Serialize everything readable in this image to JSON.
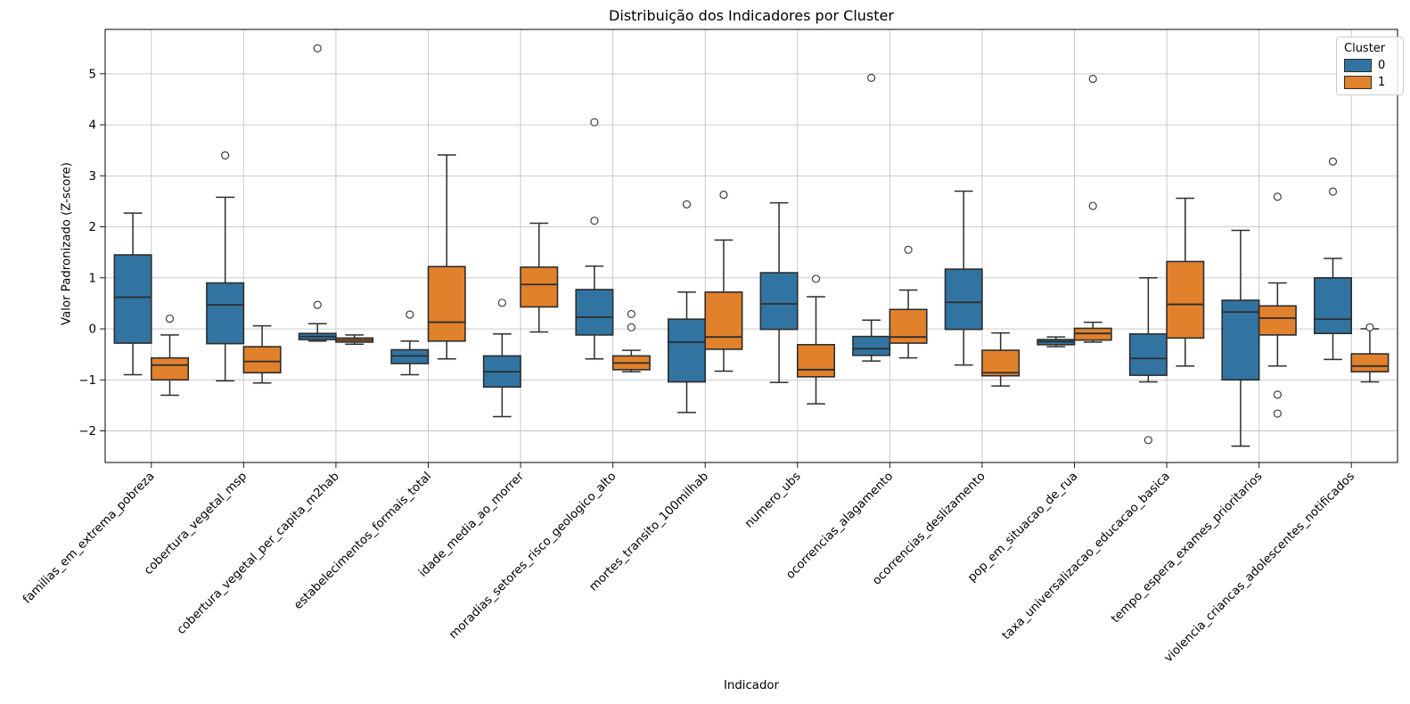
{
  "figure": {
    "title": "Distribuição dos Indicadores por Cluster"
  },
  "axes": {
    "xlabel": "Indicador",
    "ylabel": "Valor Padronizado (Z-score)"
  },
  "legend": {
    "title": "Cluster",
    "items": [
      {
        "label": "0",
        "color": "#3274a1"
      },
      {
        "label": "1",
        "color": "#e1812c"
      }
    ]
  },
  "chart_data": {
    "type": "boxplot",
    "title": "Distribuição dos Indicadores por Cluster",
    "xlabel": "Indicador",
    "ylabel": "Valor Padronizado (Z-score)",
    "grid": true,
    "legend_position": "upper right",
    "y_ticks": [
      -2,
      -1,
      0,
      1,
      2,
      3,
      4,
      5
    ],
    "ylim": [
      -2.62,
      5.87
    ],
    "categories": [
      "familias_em_extrema_pobreza",
      "cobertura_vegetal_msp",
      "cobertura_vegetal_per_capita_m2hab",
      "estabelecimentos_formais_total",
      "idade_media_ao_morrer",
      "moradias_setores_risco_geologico_alto",
      "mortes_transito_100milhab",
      "numero_ubs",
      "ocorrencias_alagamento",
      "ocorrencias_deslizamento",
      "pop_em_situacao_de_rua",
      "taxa_universalizacao_educacao_basica",
      "tempo_espera_exames_prioritarios",
      "violencia_criancas_adolescentes_notificados"
    ],
    "series": [
      {
        "name": "0",
        "color": "#3274a1",
        "boxes": [
          {
            "whislo": -0.9,
            "q1": -0.28,
            "med": 0.62,
            "q3": 1.45,
            "whishi": 2.27,
            "fliers": []
          },
          {
            "whislo": -1.02,
            "q1": -0.29,
            "med": 0.47,
            "q3": 0.9,
            "whishi": 2.58,
            "fliers": [
              3.4
            ]
          },
          {
            "whislo": -0.24,
            "q1": -0.21,
            "med": -0.15,
            "q3": -0.09,
            "whishi": 0.1,
            "fliers": [
              0.47,
              5.5
            ]
          },
          {
            "whislo": -0.9,
            "q1": -0.68,
            "med": -0.53,
            "q3": -0.41,
            "whishi": -0.24,
            "fliers": [
              0.28
            ]
          },
          {
            "whislo": -1.72,
            "q1": -1.14,
            "med": -0.84,
            "q3": -0.53,
            "whishi": -0.1,
            "fliers": [
              0.51
            ]
          },
          {
            "whislo": -0.59,
            "q1": -0.12,
            "med": 0.23,
            "q3": 0.77,
            "whishi": 1.23,
            "fliers": [
              2.12,
              4.05
            ]
          },
          {
            "whislo": -1.64,
            "q1": -1.04,
            "med": -0.26,
            "q3": 0.19,
            "whishi": 0.72,
            "fliers": [
              2.44
            ]
          },
          {
            "whislo": -1.05,
            "q1": -0.01,
            "med": 0.49,
            "q3": 1.1,
            "whishi": 2.47,
            "fliers": []
          },
          {
            "whislo": -0.63,
            "q1": -0.52,
            "med": -0.39,
            "q3": -0.15,
            "whishi": 0.17,
            "fliers": [
              4.92
            ]
          },
          {
            "whislo": -0.71,
            "q1": -0.01,
            "med": 0.52,
            "q3": 1.17,
            "whishi": 2.7,
            "fliers": []
          },
          {
            "whislo": -0.35,
            "q1": -0.31,
            "med": -0.25,
            "q3": -0.21,
            "whishi": -0.16,
            "fliers": []
          },
          {
            "whislo": -1.04,
            "q1": -0.91,
            "med": -0.58,
            "q3": -0.1,
            "whishi": 1.0,
            "fliers": [
              -2.18
            ]
          },
          {
            "whislo": -2.3,
            "q1": -1.0,
            "med": 0.33,
            "q3": 0.56,
            "whishi": 1.93,
            "fliers": []
          },
          {
            "whislo": -0.6,
            "q1": -0.09,
            "med": 0.19,
            "q3": 1.0,
            "whishi": 1.38,
            "fliers": [
              2.69,
              3.28
            ]
          }
        ]
      },
      {
        "name": "1",
        "color": "#e1812c",
        "boxes": [
          {
            "whislo": -1.3,
            "q1": -1.0,
            "med": -0.71,
            "q3": -0.57,
            "whishi": -0.12,
            "fliers": [
              0.2
            ]
          },
          {
            "whislo": -1.06,
            "q1": -0.86,
            "med": -0.64,
            "q3": -0.35,
            "whishi": 0.06,
            "fliers": []
          },
          {
            "whislo": -0.3,
            "q1": -0.26,
            "med": -0.22,
            "q3": -0.18,
            "whishi": -0.12,
            "fliers": []
          },
          {
            "whislo": -0.59,
            "q1": -0.24,
            "med": 0.13,
            "q3": 1.22,
            "whishi": 3.41,
            "fliers": []
          },
          {
            "whislo": -0.06,
            "q1": 0.43,
            "med": 0.87,
            "q3": 1.21,
            "whishi": 2.07,
            "fliers": []
          },
          {
            "whislo": -0.84,
            "q1": -0.8,
            "med": -0.67,
            "q3": -0.53,
            "whishi": -0.42,
            "fliers": [
              0.03,
              0.29
            ]
          },
          {
            "whislo": -0.83,
            "q1": -0.4,
            "med": -0.16,
            "q3": 0.72,
            "whishi": 1.74,
            "fliers": [
              2.63
            ]
          },
          {
            "whislo": -1.47,
            "q1": -0.94,
            "med": -0.8,
            "q3": -0.31,
            "whishi": 0.63,
            "fliers": [
              0.98
            ]
          },
          {
            "whislo": -0.57,
            "q1": -0.28,
            "med": -0.16,
            "q3": 0.38,
            "whishi": 0.76,
            "fliers": [
              1.55
            ]
          },
          {
            "whislo": -1.12,
            "q1": -0.92,
            "med": -0.86,
            "q3": -0.42,
            "whishi": -0.08,
            "fliers": []
          },
          {
            "whislo": -0.26,
            "q1": -0.22,
            "med": -0.09,
            "q3": 0.01,
            "whishi": 0.13,
            "fliers": [
              2.41,
              4.9
            ]
          },
          {
            "whislo": -0.73,
            "q1": -0.18,
            "med": 0.48,
            "q3": 1.32,
            "whishi": 2.56,
            "fliers": []
          },
          {
            "whislo": -0.73,
            "q1": -0.12,
            "med": 0.21,
            "q3": 0.45,
            "whishi": 0.9,
            "fliers": [
              2.59,
              -1.29,
              -1.66
            ]
          },
          {
            "whislo": -1.04,
            "q1": -0.84,
            "med": -0.73,
            "q3": -0.49,
            "whishi": 0.0,
            "fliers": [
              0.03
            ]
          }
        ]
      }
    ],
    "style": {
      "box_edge": "#2d2d2d",
      "grid_color": "#c4c4c4",
      "spine_color": "#1a1a1a",
      "flier_edge": "#3d3d3d"
    }
  }
}
